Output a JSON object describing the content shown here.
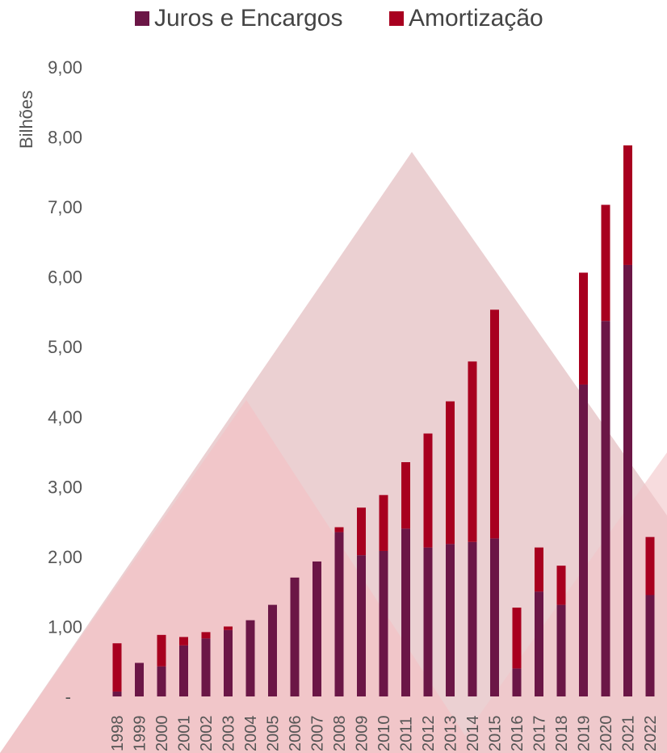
{
  "legend": {
    "items": [
      {
        "label": "Juros e Encargos",
        "color": "#6b1646"
      },
      {
        "label": "Amortização",
        "color": "#a8001f"
      }
    ]
  },
  "chart_data": {
    "type": "bar",
    "stacked": true,
    "ylabel": "Bilhões",
    "xlabel": "",
    "ylim": [
      0,
      9
    ],
    "y_ticks": [
      "-",
      "1,00",
      "2,00",
      "3,00",
      "4,00",
      "5,00",
      "6,00",
      "7,00",
      "8,00",
      "9,00"
    ],
    "grid": false,
    "legend_position": "top",
    "categories": [
      "1998",
      "1999",
      "2000",
      "2001",
      "2002",
      "2003",
      "2004",
      "2005",
      "2006",
      "2007",
      "2008",
      "2009",
      "2010",
      "2011",
      "2012",
      "2013",
      "2014",
      "2015",
      "2016",
      "2017",
      "2018",
      "2019",
      "2020",
      "2021",
      "2022"
    ],
    "series": [
      {
        "name": "Juros e Encargos",
        "color": "#6b1646",
        "values": [
          0.07,
          0.48,
          0.43,
          0.73,
          0.83,
          0.95,
          1.09,
          1.31,
          1.7,
          1.93,
          2.35,
          2.02,
          2.08,
          2.4,
          2.13,
          2.18,
          2.21,
          2.26,
          0.4,
          1.5,
          1.31,
          4.46,
          5.37,
          6.17,
          1.45
        ]
      },
      {
        "name": "Amortização",
        "color": "#a8001f",
        "values": [
          0.69,
          0.0,
          0.45,
          0.12,
          0.09,
          0.05,
          0.0,
          0.0,
          0.0,
          0.0,
          0.07,
          0.68,
          0.8,
          0.95,
          1.63,
          2.04,
          2.58,
          3.27,
          0.87,
          0.63,
          0.56,
          1.6,
          1.66,
          1.71,
          0.83
        ]
      }
    ]
  }
}
